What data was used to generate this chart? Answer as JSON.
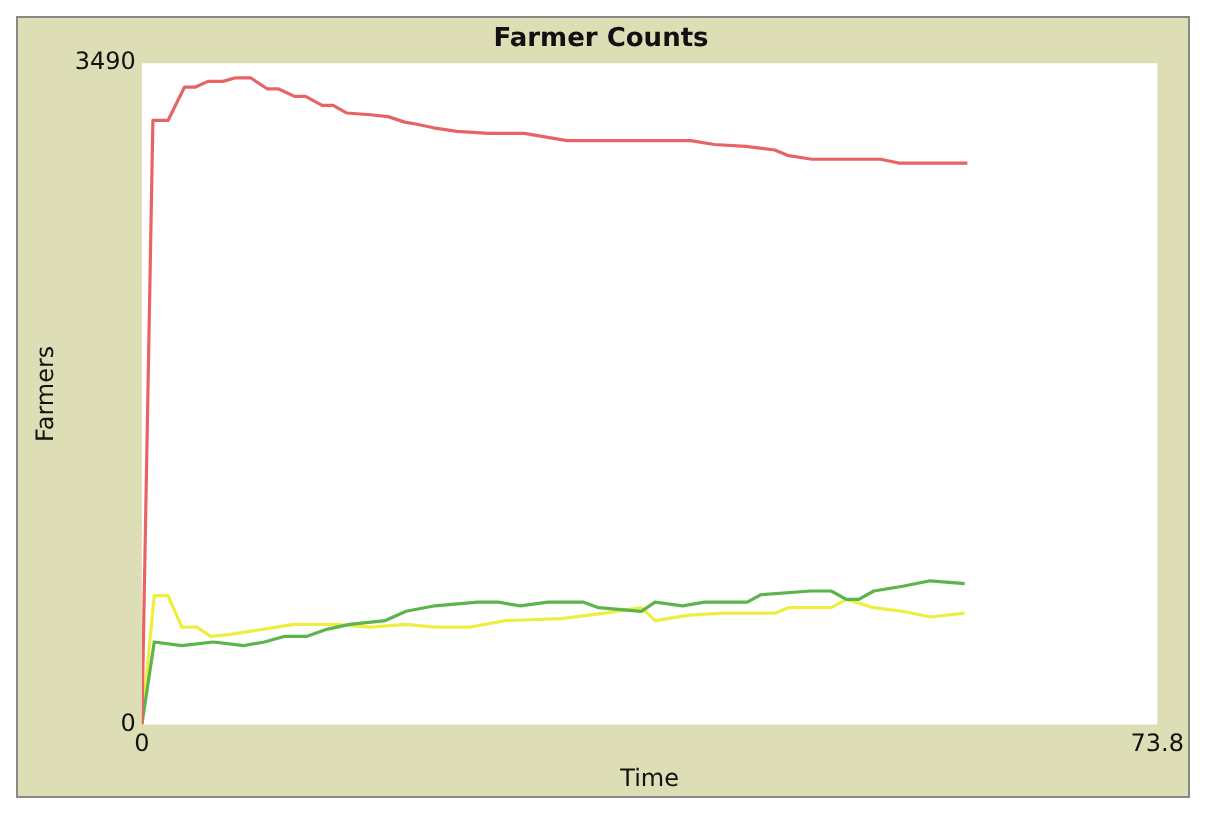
{
  "chart_data": {
    "type": "line",
    "title": "Farmer Counts",
    "xlabel": "Time",
    "ylabel": "Farmers",
    "xlim": [
      0,
      73.8
    ],
    "xticks": [
      0,
      73.8
    ],
    "ylim": [
      0,
      3490
    ],
    "yticks": [
      0,
      3490
    ],
    "grid": false,
    "legend": false,
    "marker": "none",
    "line_style": "solid",
    "series": [
      {
        "color": "#e86464",
        "x": [
          0,
          0.8,
          1.9,
          3.1,
          3.9,
          4.8,
          5.9,
          6.8,
          7.9,
          9.1,
          9.9,
          11.1,
          11.9,
          13.1,
          13.9,
          14.9,
          16.6,
          17.9,
          19.1,
          19.9,
          21.2,
          22.9,
          25.2,
          27.8,
          30.9,
          39.9,
          41.6,
          43.9,
          46.0,
          47.0,
          48.7,
          53.7,
          55.0,
          60.0
        ],
        "values": [
          0,
          3188,
          3188,
          3364,
          3364,
          3394,
          3394,
          3413,
          3413,
          3355,
          3355,
          3315,
          3315,
          3267,
          3267,
          3227,
          3218,
          3208,
          3179,
          3169,
          3149,
          3130,
          3120,
          3120,
          3081,
          3081,
          3061,
          3051,
          3032,
          3002,
          2983,
          2983,
          2963,
          2963
        ]
      },
      {
        "color": "#5cb44c",
        "x": [
          0,
          0.9,
          2.9,
          5.2,
          7.4,
          8.9,
          10.4,
          12.0,
          13.5,
          15.1,
          17.7,
          19.2,
          21.3,
          24.4,
          25.9,
          27.5,
          29.5,
          32.1,
          33.2,
          36.3,
          37.3,
          39.3,
          40.9,
          44.0,
          45.0,
          48.6,
          50.1,
          51.2,
          52.1,
          53.2,
          55.3,
          57.3,
          59.8
        ],
        "values": [
          0,
          435,
          416,
          435,
          416,
          435,
          465,
          465,
          503,
          528,
          548,
          597,
          626,
          645,
          645,
          626,
          645,
          645,
          616,
          597,
          645,
          626,
          645,
          645,
          685,
          704,
          704,
          660,
          660,
          704,
          729,
          758,
          743
        ]
      },
      {
        "color": "#eeee40",
        "x": [
          0,
          0.9,
          1.9,
          2.9,
          4.0,
          5.0,
          6.3,
          8.9,
          11.0,
          14.1,
          16.6,
          19.2,
          21.3,
          23.8,
          26.4,
          30.5,
          33.6,
          36.3,
          37.3,
          39.8,
          42.3,
          46.0,
          47.0,
          50.1,
          51.2,
          53.2,
          55.3,
          57.3,
          59.8
        ],
        "values": [
          0,
          680,
          680,
          513,
          513,
          465,
          474,
          503,
          528,
          528,
          513,
          528,
          513,
          513,
          548,
          558,
          587,
          616,
          548,
          577,
          587,
          587,
          616,
          616,
          660,
          616,
          597,
          567,
          587
        ]
      }
    ]
  }
}
